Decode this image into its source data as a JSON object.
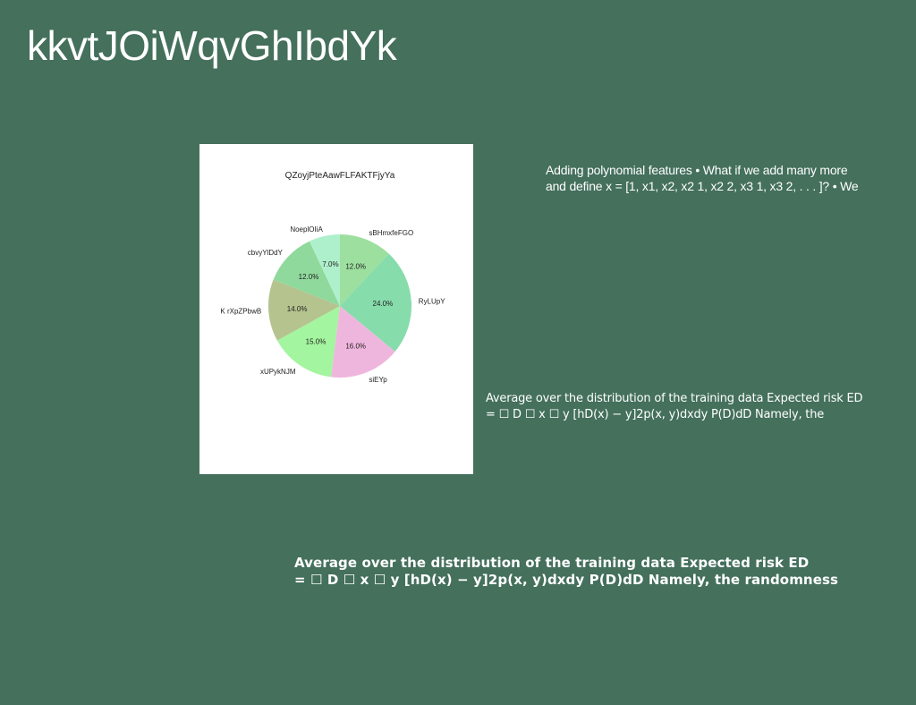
{
  "slide": {
    "title": "kkvtJOiWqvGhIbdYk"
  },
  "text_blocks": {
    "top_right": {
      "line1": "Adding polynomial features • What if we add many more",
      "line2": "and define x = [1, x1, x2, x2 1, x2 2, x3 1, x3 2, . . . ]? • We"
    },
    "middle_right": {
      "line1": "Average over the distribution of the training data Expected risk ED",
      "line2": "= ☐ D ☐ x ☐ y [hD(x) − y]2p(x, y)dxdy P(D)dD Namely, the"
    },
    "bottom": {
      "line1": "Average over the distribution of the training data Expected risk ED",
      "line2": "= ☐ D ☐ x ☐ y [hD(x) − y]2p(x, y)dxdy P(D)dD Namely, the randomness"
    }
  },
  "chart_data": {
    "type": "pie",
    "title": "QZoyjPteAawFLFAKTFjyYa",
    "start_angle_deg": 90,
    "direction": "clockwise",
    "slices": [
      {
        "label": "sBHmxfeFGO",
        "value": 12.0,
        "pct_label": "12.0%",
        "color": "#9ddf9f"
      },
      {
        "label": "RyLUpY",
        "value": 24.0,
        "pct_label": "24.0%",
        "color": "#86dcab"
      },
      {
        "label": "siEYp",
        "value": 16.0,
        "pct_label": "16.0%",
        "color": "#efb6dd"
      },
      {
        "label": "xUPykNJM",
        "value": 15.0,
        "pct_label": "15.0%",
        "color": "#a3f59f"
      },
      {
        "label": "K rXpZPbwB",
        "value": 14.0,
        "pct_label": "14.0%",
        "color": "#b5c38e"
      },
      {
        "label": "cbvyYlDdY",
        "value": 12.0,
        "pct_label": "12.0%",
        "color": "#8fd99c"
      },
      {
        "label": "NoeplOIiA",
        "value": 7.0,
        "pct_label": "7.0%",
        "color": "#aff0cc"
      }
    ]
  }
}
